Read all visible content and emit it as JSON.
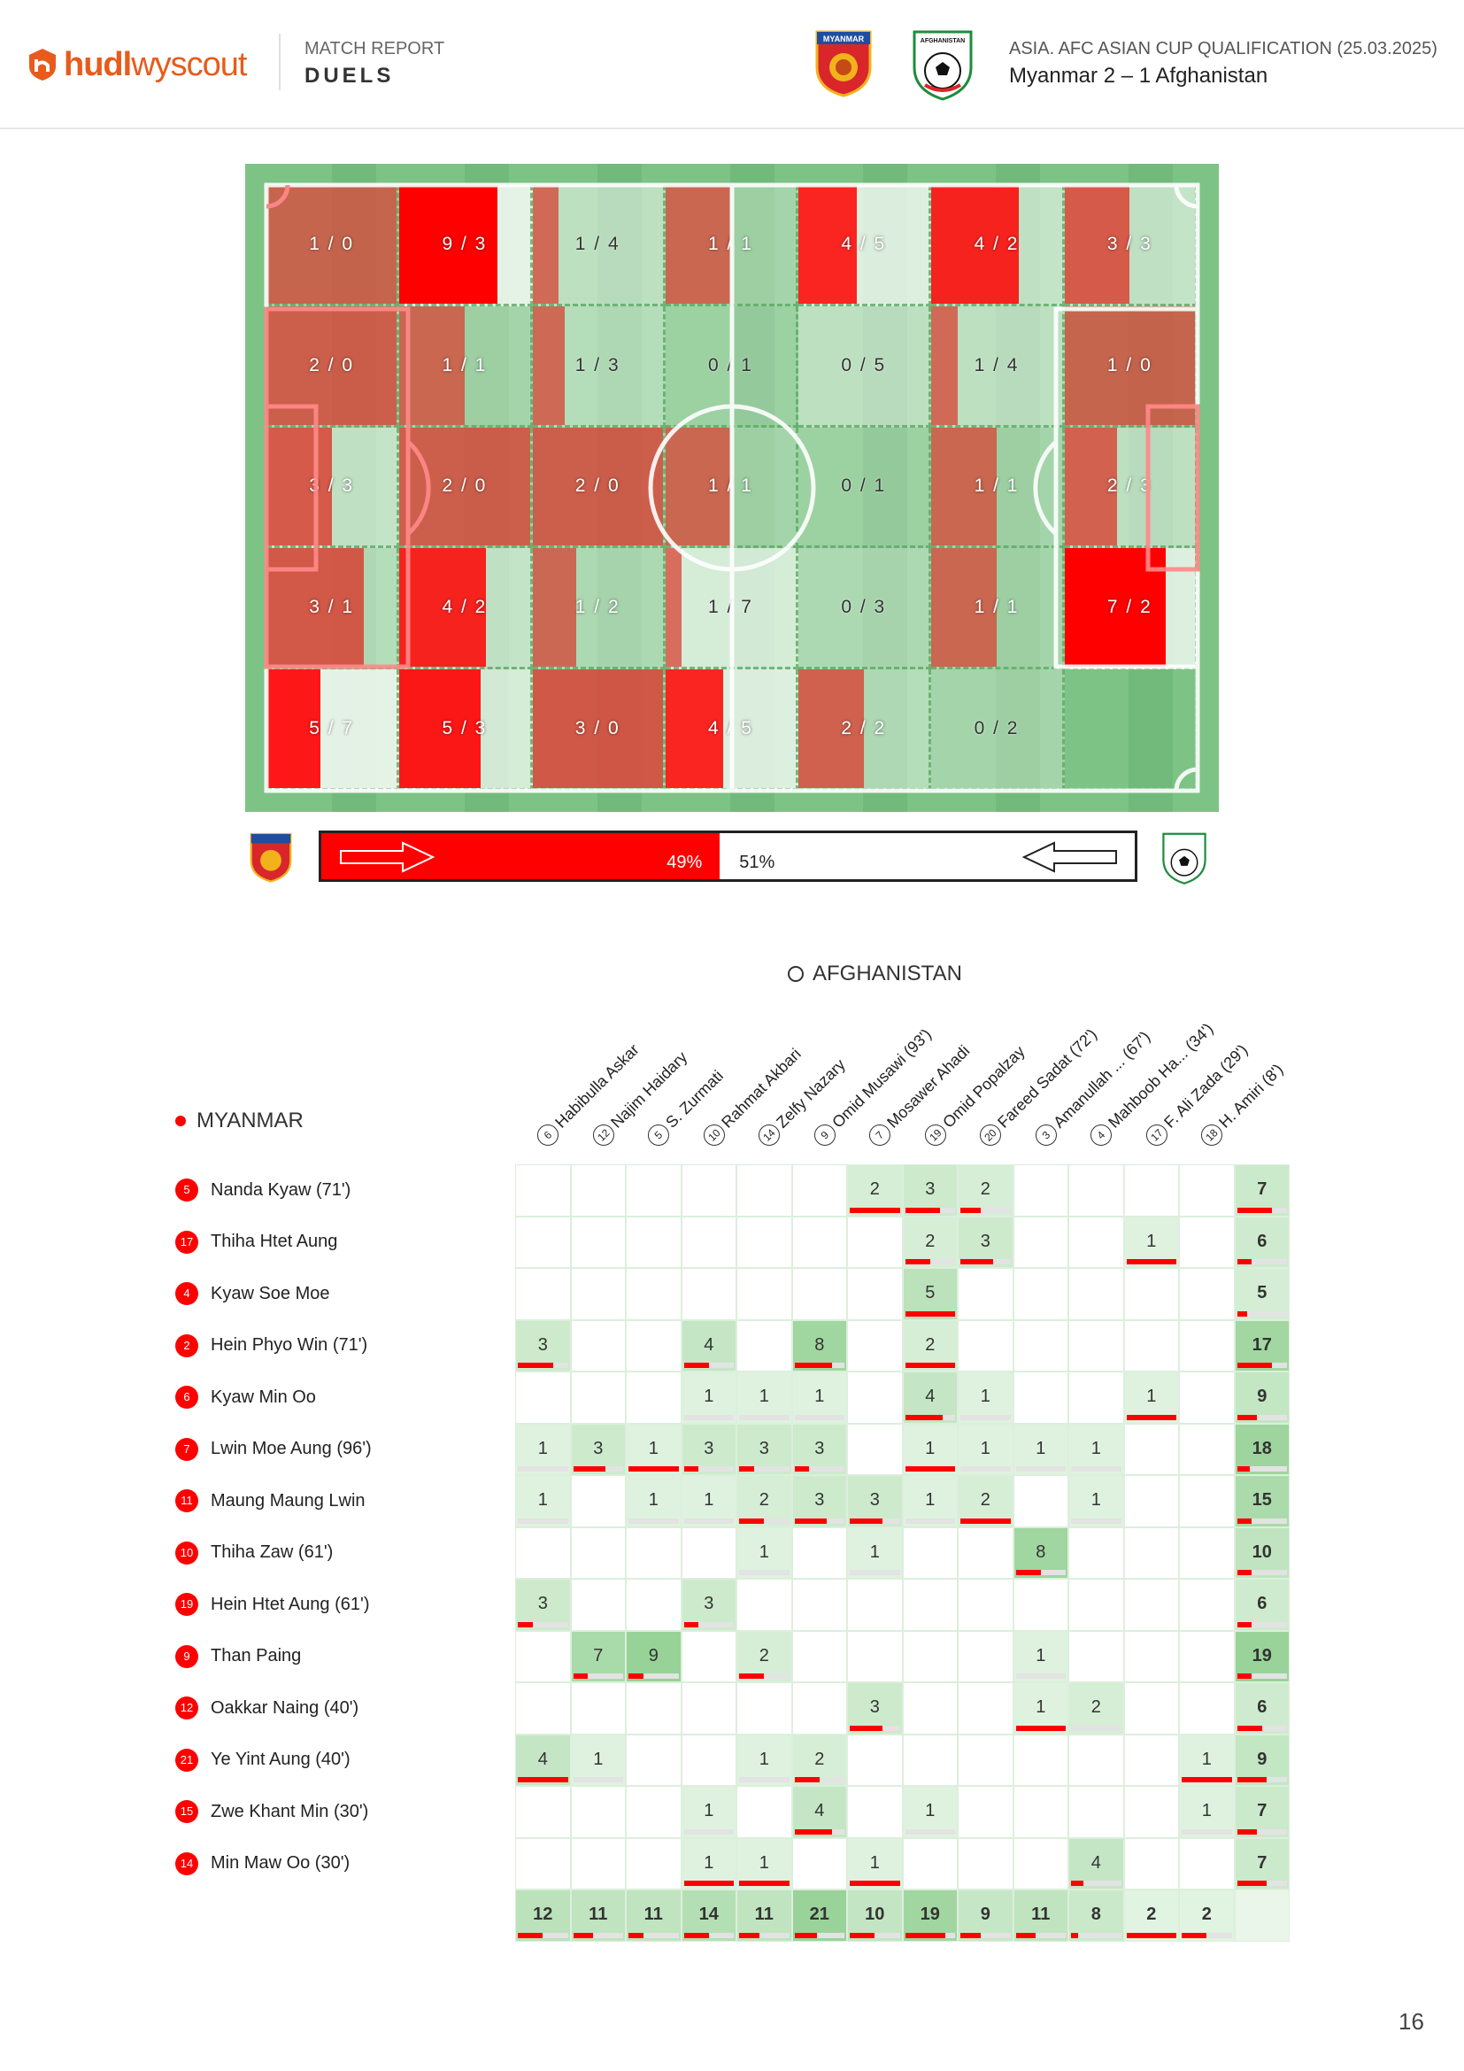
{
  "header": {
    "logo_brand": "hudl",
    "logo_product": "wyscout",
    "report_kind": "MATCH REPORT",
    "report_title": "DUELS",
    "competition": "ASIA. AFC ASIAN CUP QUALIFICATION (25.03.2025)",
    "score": "Myanmar 2 – 1 Afghanistan",
    "home_crest_text": "MYANMAR",
    "away_crest_text": "AFGHANISTAN"
  },
  "colors": {
    "home": "#ff0000",
    "pitch": "#7dc386",
    "brand": "#e85b1b"
  },
  "pitch_grid": {
    "rows": [
      [
        {
          "label": "1 / 0",
          "won": 1,
          "lost": 0
        },
        {
          "label": "9 / 3",
          "won": 9,
          "lost": 3
        },
        {
          "label": "1 / 4",
          "won": 1,
          "lost": 4
        },
        {
          "label": "1 / 1",
          "won": 1,
          "lost": 1
        },
        {
          "label": "4 / 5",
          "won": 4,
          "lost": 5
        },
        {
          "label": "4 / 2",
          "won": 4,
          "lost": 2
        },
        {
          "label": "3 / 3",
          "won": 3,
          "lost": 3
        }
      ],
      [
        {
          "label": "2 / 0",
          "won": 2,
          "lost": 0
        },
        {
          "label": "1 / 1",
          "won": 1,
          "lost": 1
        },
        {
          "label": "1 / 3",
          "won": 1,
          "lost": 3
        },
        {
          "label": "0 / 1",
          "won": 0,
          "lost": 1
        },
        {
          "label": "0 / 5",
          "won": 0,
          "lost": 5
        },
        {
          "label": "1 / 4",
          "won": 1,
          "lost": 4
        },
        {
          "label": "1 / 0",
          "won": 1,
          "lost": 0
        }
      ],
      [
        {
          "label": "3 / 3",
          "won": 3,
          "lost": 3
        },
        {
          "label": "2 / 0",
          "won": 2,
          "lost": 0
        },
        {
          "label": "2 / 0",
          "won": 2,
          "lost": 0
        },
        {
          "label": "1 / 1",
          "won": 1,
          "lost": 1
        },
        {
          "label": "0 / 1",
          "won": 0,
          "lost": 1
        },
        {
          "label": "1 / 1",
          "won": 1,
          "lost": 1
        },
        {
          "label": "2 / 3",
          "won": 2,
          "lost": 3
        }
      ],
      [
        {
          "label": "3 / 1",
          "won": 3,
          "lost": 1
        },
        {
          "label": "4 / 2",
          "won": 4,
          "lost": 2
        },
        {
          "label": "1 / 2",
          "won": 1,
          "lost": 2
        },
        {
          "label": "1 / 7",
          "won": 1,
          "lost": 7
        },
        {
          "label": "0 / 3",
          "won": 0,
          "lost": 3
        },
        {
          "label": "1 / 1",
          "won": 1,
          "lost": 1
        },
        {
          "label": "7 / 2",
          "won": 7,
          "lost": 2
        }
      ],
      [
        {
          "label": "5 / 7",
          "won": 5,
          "lost": 7
        },
        {
          "label": "5 / 3",
          "won": 5,
          "lost": 3
        },
        {
          "label": "3 / 0",
          "won": 3,
          "lost": 0
        },
        {
          "label": "4 / 5",
          "won": 4,
          "lost": 5
        },
        {
          "label": "2 / 2",
          "won": 2,
          "lost": 2
        },
        {
          "label": "0 / 2",
          "won": 0,
          "lost": 2
        },
        {
          "label": "",
          "won": 0,
          "lost": 0
        }
      ]
    ]
  },
  "possession_bar": {
    "home_pct_label": "49%",
    "away_pct_label": "51%",
    "home_share": 0.49
  },
  "matrix": {
    "away_team": "AFGHANISTAN",
    "home_team": "MYANMAR",
    "columns": [
      {
        "num": "6",
        "name": "Habibulla Askar"
      },
      {
        "num": "12",
        "name": "Najim Haidary"
      },
      {
        "num": "5",
        "name": "S. Zurmati"
      },
      {
        "num": "10",
        "name": "Rahmat Akbari"
      },
      {
        "num": "14",
        "name": "Zelfy Nazary"
      },
      {
        "num": "9",
        "name": "Omid Musawi (93')"
      },
      {
        "num": "7",
        "name": "Mosawer Ahadi"
      },
      {
        "num": "19",
        "name": "Omid Popalzay"
      },
      {
        "num": "20",
        "name": "Fareed Sadat (72')"
      },
      {
        "num": "3",
        "name": "Amanullah ... (67')"
      },
      {
        "num": "4",
        "name": "Mahboob Ha... (34')"
      },
      {
        "num": "17",
        "name": "F. Ali Zada (29')"
      },
      {
        "num": "18",
        "name": "H. Amiri (8')"
      }
    ],
    "rows": [
      {
        "num": "5",
        "name": "Nanda Kyaw (71')",
        "cells": [
          "",
          "",
          "",
          "",
          "",
          "",
          "2",
          "3",
          "2",
          "",
          "",
          "",
          ""
        ],
        "won": [
          0,
          0,
          0,
          0,
          0,
          0,
          1,
          0.7,
          0.4,
          0,
          0,
          0,
          0
        ],
        "total": "7",
        "total_won": 0.7
      },
      {
        "num": "17",
        "name": "Thiha Htet Aung",
        "cells": [
          "",
          "",
          "",
          "",
          "",
          "",
          "",
          "2",
          "3",
          "",
          "",
          "1",
          ""
        ],
        "won": [
          0,
          0,
          0,
          0,
          0,
          0,
          0,
          0.5,
          0.65,
          0,
          0,
          1,
          0
        ],
        "total": "6",
        "total_won": 0.3
      },
      {
        "num": "4",
        "name": "Kyaw Soe Moe",
        "cells": [
          "",
          "",
          "",
          "",
          "",
          "",
          "",
          "5",
          "",
          "",
          "",
          "",
          ""
        ],
        "won": [
          0,
          0,
          0,
          0,
          0,
          0,
          0,
          1,
          0,
          0,
          0,
          0,
          0
        ],
        "total": "5",
        "total_won": 0.2
      },
      {
        "num": "2",
        "name": "Hein Phyo Win (71')",
        "cells": [
          "3",
          "",
          "",
          "4",
          "",
          "8",
          "",
          "2",
          "",
          "",
          "",
          "",
          ""
        ],
        "won": [
          0.7,
          0,
          0,
          0.5,
          0,
          0.75,
          0,
          1,
          0,
          0,
          0,
          0,
          0
        ],
        "total": "17",
        "total_won": 0.7
      },
      {
        "num": "6",
        "name": "Kyaw Min Oo",
        "cells": [
          "",
          "",
          "",
          "1",
          "1",
          "1",
          "",
          "4",
          "1",
          "",
          "",
          "1",
          ""
        ],
        "won": [
          0,
          0,
          0,
          0,
          0,
          0,
          0,
          0.75,
          0,
          0,
          0,
          1,
          0
        ],
        "total": "9",
        "total_won": 0.4
      },
      {
        "num": "7",
        "name": "Lwin Moe Aung (96')",
        "cells": [
          "1",
          "3",
          "1",
          "3",
          "3",
          "3",
          "",
          "1",
          "1",
          "1",
          "1",
          "",
          ""
        ],
        "won": [
          0,
          0.65,
          1,
          0.3,
          0.3,
          0.3,
          0,
          1,
          0,
          0,
          0,
          0,
          0
        ],
        "total": "18",
        "total_won": 0.25
      },
      {
        "num": "11",
        "name": "Maung Maung Lwin",
        "cells": [
          "1",
          "",
          "1",
          "1",
          "2",
          "3",
          "3",
          "1",
          "2",
          "",
          "1",
          "",
          ""
        ],
        "won": [
          0,
          0,
          0,
          0,
          0.5,
          0.65,
          0.65,
          0,
          1,
          0,
          0,
          0,
          0
        ],
        "total": "15",
        "total_won": 0.3
      },
      {
        "num": "10",
        "name": "Thiha Zaw (61')",
        "cells": [
          "",
          "",
          "",
          "",
          "1",
          "",
          "1",
          "",
          "",
          "8",
          "",
          "",
          ""
        ],
        "won": [
          0,
          0,
          0,
          0,
          0,
          0,
          0,
          0,
          0,
          0.5,
          0,
          0,
          0
        ],
        "total": "10",
        "total_won": 0.3
      },
      {
        "num": "19",
        "name": "Hein Htet Aung (61')",
        "cells": [
          "3",
          "",
          "",
          "3",
          "",
          "",
          "",
          "",
          "",
          "",
          "",
          "",
          ""
        ],
        "won": [
          0.3,
          0,
          0,
          0.3,
          0,
          0,
          0,
          0,
          0,
          0,
          0,
          0,
          0
        ],
        "total": "6",
        "total_won": 0.3
      },
      {
        "num": "9",
        "name": "Than Paing",
        "cells": [
          "",
          "7",
          "9",
          "",
          "2",
          "",
          "",
          "",
          "",
          "1",
          "",
          "",
          ""
        ],
        "won": [
          0,
          0.3,
          0.3,
          0,
          0.5,
          0,
          0,
          0,
          0,
          0,
          0,
          0,
          0
        ],
        "total": "19",
        "total_won": 0.3
      },
      {
        "num": "12",
        "name": "Oakkar Naing (40')",
        "cells": [
          "",
          "",
          "",
          "",
          "",
          "",
          "3",
          "",
          "",
          "1",
          "2",
          "",
          ""
        ],
        "won": [
          0,
          0,
          0,
          0,
          0,
          0,
          0.65,
          0,
          0,
          1,
          0,
          0,
          0
        ],
        "total": "6",
        "total_won": 0.5
      },
      {
        "num": "21",
        "name": "Ye Yint Aung (40')",
        "cells": [
          "4",
          "1",
          "",
          "",
          "1",
          "2",
          "",
          "",
          "",
          "",
          "",
          "",
          "1"
        ],
        "won": [
          1,
          0,
          0,
          0,
          0,
          0.5,
          0,
          0,
          0,
          0,
          0,
          0,
          1
        ],
        "total": "9",
        "total_won": 0.6
      },
      {
        "num": "15",
        "name": "Zwe Khant Min (30')",
        "cells": [
          "",
          "",
          "",
          "1",
          "",
          "4",
          "",
          "1",
          "",
          "",
          "",
          "",
          "1"
        ],
        "won": [
          0,
          0,
          0,
          0,
          0,
          0.75,
          0,
          0,
          0,
          0,
          0,
          0,
          0
        ],
        "total": "7",
        "total_won": 0.4
      },
      {
        "num": "14",
        "name": "Min Maw Oo (30')",
        "cells": [
          "",
          "",
          "",
          "1",
          "1",
          "",
          "1",
          "",
          "",
          "",
          "4",
          "",
          ""
        ],
        "won": [
          0,
          0,
          0,
          1,
          1,
          0,
          1,
          0,
          0,
          0,
          0.25,
          0,
          0
        ],
        "total": "7",
        "total_won": 0.6
      }
    ],
    "column_totals": [
      "12",
      "11",
      "11",
      "14",
      "11",
      "21",
      "10",
      "19",
      "9",
      "11",
      "8",
      "2",
      "2"
    ],
    "column_totals_won": [
      0.5,
      0.4,
      0.3,
      0.5,
      0.4,
      0.45,
      0.5,
      0.8,
      0.4,
      0.4,
      0.15,
      1,
      0.5
    ]
  },
  "page_number": "16"
}
